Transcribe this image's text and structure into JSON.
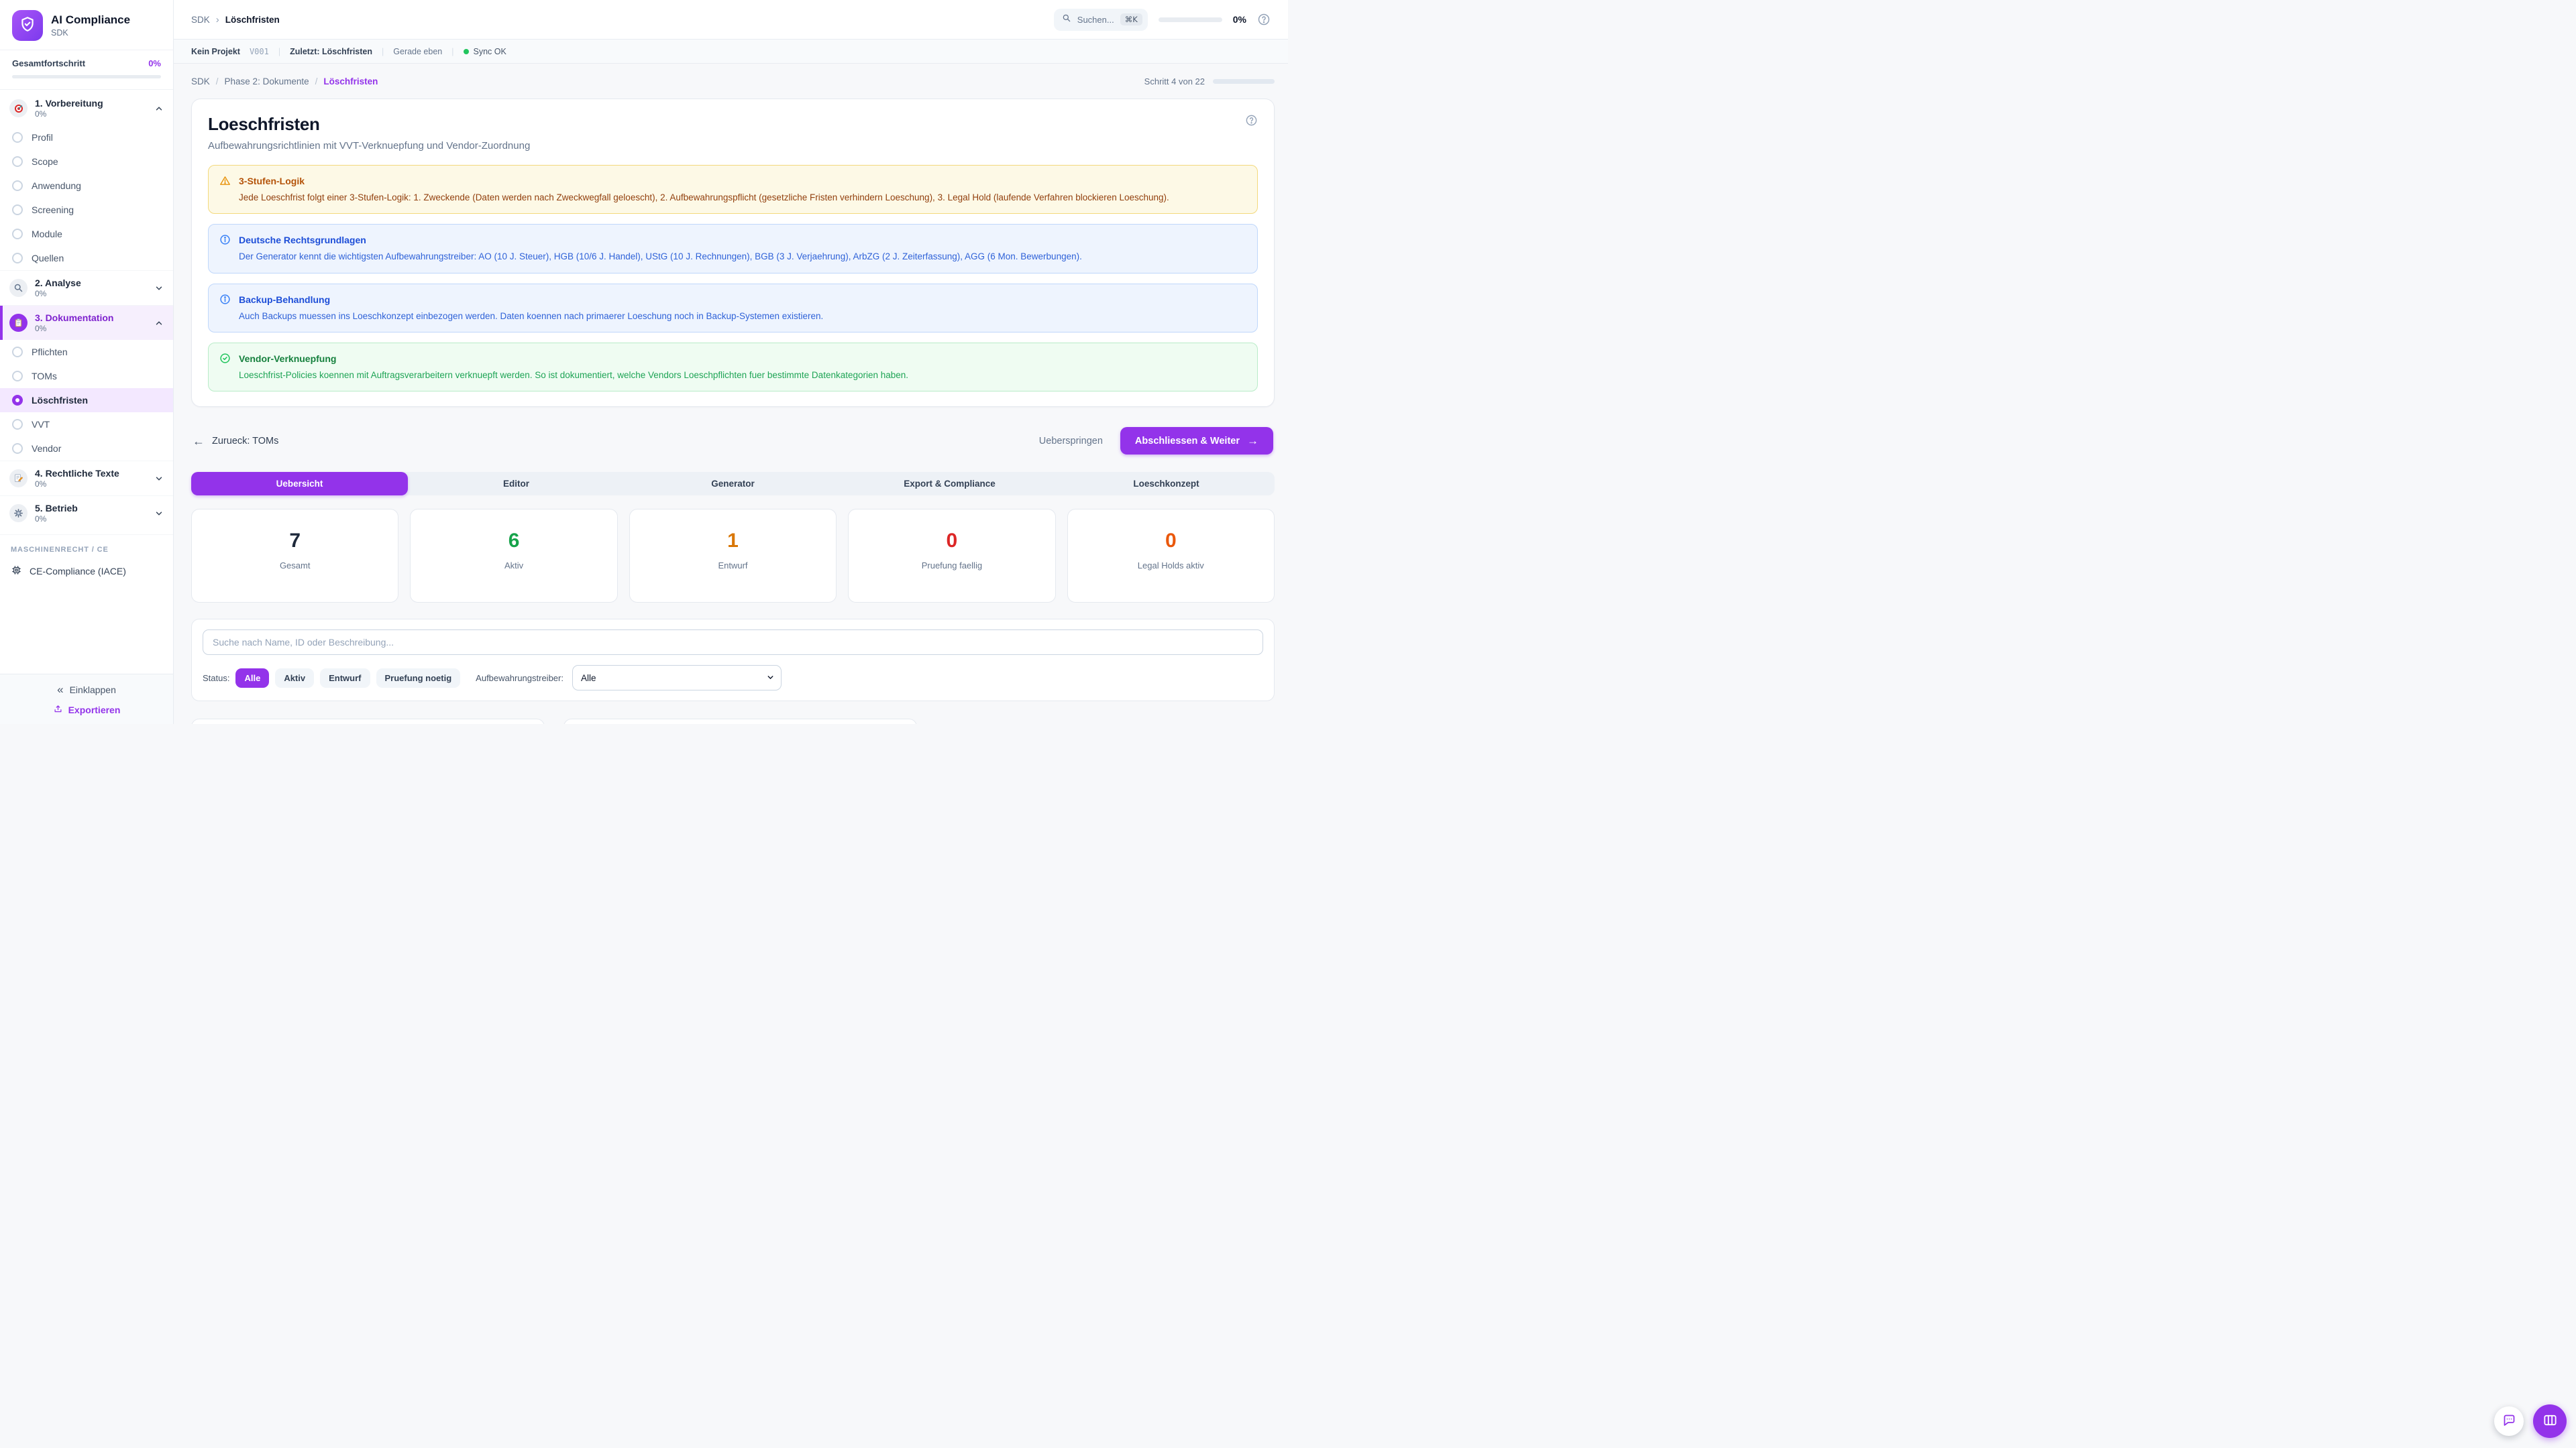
{
  "colors": {
    "accent": "#9333ea",
    "accent_light_bg": "#f3e8ff",
    "stat_total": "#1e293b",
    "stat_active": "#16a34a",
    "stat_draft": "#d97706",
    "stat_review": "#dc2626",
    "stat_legalhold": "#ea580c",
    "sync_ok": "#22c55e"
  },
  "sidebar": {
    "app_title": "AI Compliance",
    "app_subtitle": "SDK",
    "progress_label": "Gesamtfortschritt",
    "progress_value": "0%",
    "sections": [
      {
        "title": "1. Vorbereitung",
        "percent": "0%",
        "icon": "target-icon"
      },
      {
        "title": "2. Analyse",
        "percent": "0%",
        "icon": "magnifier-icon"
      },
      {
        "title": "3. Dokumentation",
        "percent": "0%",
        "icon": "clipboard-icon"
      },
      {
        "title": "4. Rechtliche Texte",
        "percent": "0%",
        "icon": "memo-pencil-icon"
      },
      {
        "title": "5. Betrieb",
        "percent": "0%",
        "icon": "gear-icon"
      }
    ],
    "items_vorbereitung": [
      "Profil",
      "Scope",
      "Anwendung",
      "Screening",
      "Module",
      "Quellen"
    ],
    "items_dokumentation": [
      "Pflichten",
      "TOMs",
      "Löschfristen",
      "VVT",
      "Vendor"
    ],
    "active_item": "Löschfristen",
    "group_label": "MASCHINENRECHT / CE",
    "ce_label": "CE-Compliance (IACE)",
    "collapse_label": "Einklappen",
    "collapse_glyph": "«",
    "export_label": "Exportieren"
  },
  "topbar": {
    "crumb_root": "SDK",
    "crumb_chevron": "›",
    "crumb_current": "Löschfristen",
    "search_placeholder": "Suchen...",
    "search_shortcut": "⌘K",
    "progress_value": "0%"
  },
  "statusbar": {
    "project": "Kein Projekt",
    "version": "V001",
    "separator": "|",
    "last_label": "Zuletzt: Löschfristen",
    "time": "Gerade eben",
    "sync": "Sync OK"
  },
  "pagenav": {
    "crumbs": [
      "SDK",
      "Phase 2: Dokumente",
      "Löschfristen"
    ],
    "divider": "/",
    "step_label": "Schritt 4 von 22",
    "step_percent": 18
  },
  "page": {
    "title": "Loeschfristen",
    "subtitle": "Aufbewahrungsrichtlinien mit VVT-Verknuepfung und Vendor-Zuordnung"
  },
  "info_boxes": [
    {
      "type": "warning",
      "title": "3-Stufen-Logik",
      "body": "Jede Loeschfrist folgt einer 3-Stufen-Logik: 1. Zweckende (Daten werden nach Zweckwegfall geloescht), 2. Aufbewahrungspflicht (gesetzliche Fristen verhindern Loeschung), 3. Legal Hold (laufende Verfahren blockieren Loeschung)."
    },
    {
      "type": "info",
      "title": "Deutsche Rechtsgrundlagen",
      "body": "Der Generator kennt die wichtigsten Aufbewahrungstreiber: AO (10 J. Steuer), HGB (10/6 J. Handel), UStG (10 J. Rechnungen), BGB (3 J. Verjaehrung), ArbZG (2 J. Zeiterfassung), AGG (6 Mon. Bewerbungen)."
    },
    {
      "type": "info",
      "title": "Backup-Behandlung",
      "body": "Auch Backups muessen ins Loeschkonzept einbezogen werden. Daten koennen nach primaerer Loeschung noch in Backup-Systemen existieren."
    },
    {
      "type": "success",
      "title": "Vendor-Verknuepfung",
      "body": "Loeschfrist-Policies koennen mit Auftragsverarbeitern verknuepft werden. So ist dokumentiert, welche Vendors Loeschpflichten fuer bestimmte Datenkategorien haben."
    }
  ],
  "wizard": {
    "back_label": "Zurueck: TOMs",
    "back_arrow": "←",
    "skip_label": "Ueberspringen",
    "next_label": "Abschliessen & Weiter",
    "next_arrow": "→"
  },
  "tabs": [
    {
      "label": "Uebersicht",
      "active": true
    },
    {
      "label": "Editor",
      "active": false
    },
    {
      "label": "Generator",
      "active": false
    },
    {
      "label": "Export & Compliance",
      "active": false
    },
    {
      "label": "Loeschkonzept",
      "active": false
    }
  ],
  "stats": [
    {
      "value": "7",
      "label": "Gesamt",
      "color": "#1e293b"
    },
    {
      "value": "6",
      "label": "Aktiv",
      "color": "#16a34a"
    },
    {
      "value": "1",
      "label": "Entwurf",
      "color": "#d97706"
    },
    {
      "value": "0",
      "label": "Pruefung faellig",
      "color": "#dc2626"
    },
    {
      "value": "0",
      "label": "Legal Holds aktiv",
      "color": "#ea580c"
    }
  ],
  "filters": {
    "search_placeholder": "Suche nach Name, ID oder Beschreibung...",
    "status_label": "Status:",
    "status_options": [
      "Alle",
      "Aktiv",
      "Entwurf",
      "Pruefung noetig"
    ],
    "status_active": "Alle",
    "driver_label": "Aufbewahrungstreiber:",
    "driver_value": "Alle"
  }
}
